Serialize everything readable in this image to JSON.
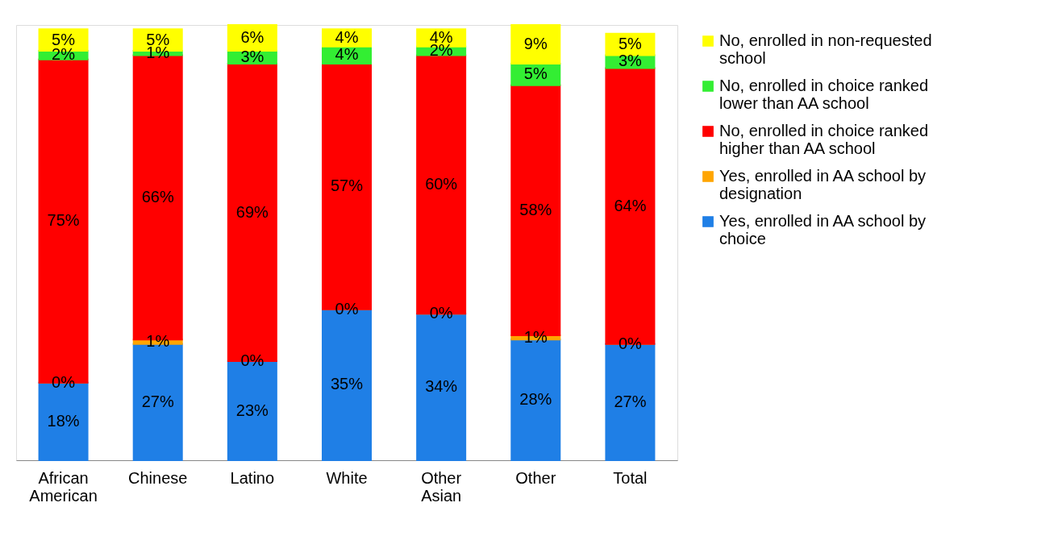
{
  "chart_data": {
    "type": "bar",
    "stacked": true,
    "legend": "right",
    "grid": false,
    "categories": [
      "African American",
      "Chinese",
      "Latino",
      "White",
      "Other Asian",
      "Other",
      "Total"
    ],
    "series": [
      {
        "name": "Yes, enrolled in AA school by choice",
        "color": "#1f7fe6",
        "values": [
          18,
          27,
          23,
          35,
          34,
          28,
          27
        ],
        "value_labels": [
          "18%",
          "27%",
          "23%",
          "35%",
          "34%",
          "28%",
          "27%"
        ]
      },
      {
        "name": "Yes, enrolled in AA school by designation",
        "color": "#ffa500",
        "values": [
          0,
          1,
          0,
          0,
          0,
          1,
          0
        ],
        "value_labels": [
          "0%",
          "1%",
          "0%",
          "0%",
          "0%",
          "1%",
          "0%"
        ]
      },
      {
        "name": "No, enrolled in choice ranked higher than AA school",
        "color": "#ff0000",
        "values": [
          75,
          66,
          69,
          57,
          60,
          58,
          64
        ],
        "value_labels": [
          "75%",
          "66%",
          "69%",
          "57%",
          "60%",
          "58%",
          "64%"
        ]
      },
      {
        "name": "No, enrolled in choice ranked lower than AA school",
        "color": "#33ee33",
        "values": [
          2,
          1,
          3,
          4,
          2,
          5,
          3
        ],
        "value_labels": [
          "2%",
          "1%",
          "3%",
          "4%",
          "2%",
          "5%",
          "3%"
        ]
      },
      {
        "name": "No, enrolled in non-requested school",
        "color": "#ffff00",
        "values": [
          5,
          5,
          6,
          4,
          4,
          9,
          5
        ],
        "value_labels": [
          "5%",
          "5%",
          "6%",
          "4%",
          "4%",
          "9%",
          "5%"
        ]
      }
    ]
  }
}
